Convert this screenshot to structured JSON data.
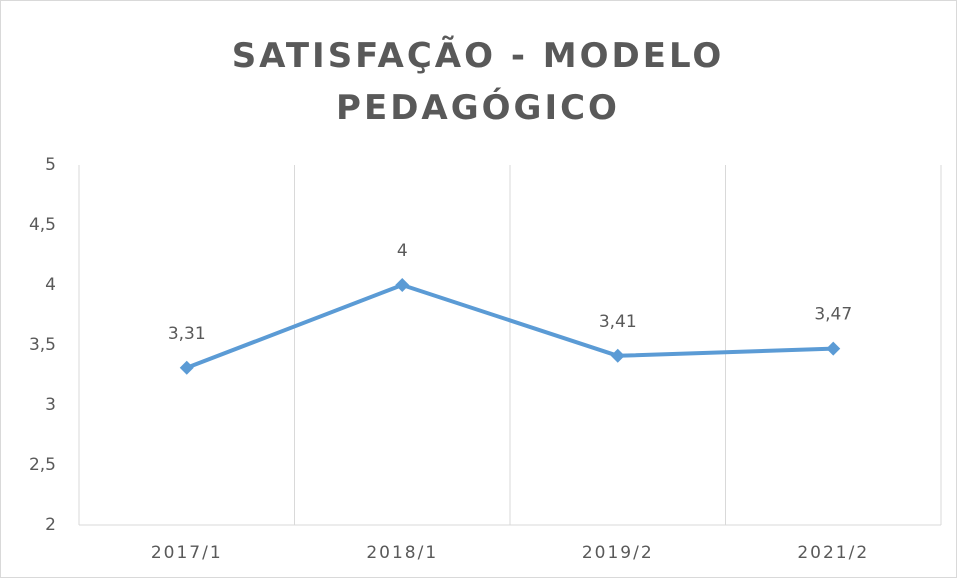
{
  "chart_data": {
    "type": "line",
    "title": "SATISFAÇÃO - MODELO PEDAGÓGICO",
    "categories": [
      "2017/1",
      "2018/1",
      "2019/2",
      "2021/2"
    ],
    "series": [
      {
        "color": "#5b9bd5",
        "values": [
          3.31,
          4,
          3.41,
          3.47
        ],
        "value_labels": [
          "3,31",
          "4",
          "3,41",
          "3,47"
        ]
      }
    ],
    "ylim": [
      2,
      5
    ],
    "yticks": [
      2,
      {
        "value": 2.5,
        "label": "2,5"
      },
      3,
      {
        "value": 3.5,
        "label": "3,5"
      },
      4,
      {
        "value": 4.5,
        "label": "4,5"
      },
      5
    ]
  }
}
